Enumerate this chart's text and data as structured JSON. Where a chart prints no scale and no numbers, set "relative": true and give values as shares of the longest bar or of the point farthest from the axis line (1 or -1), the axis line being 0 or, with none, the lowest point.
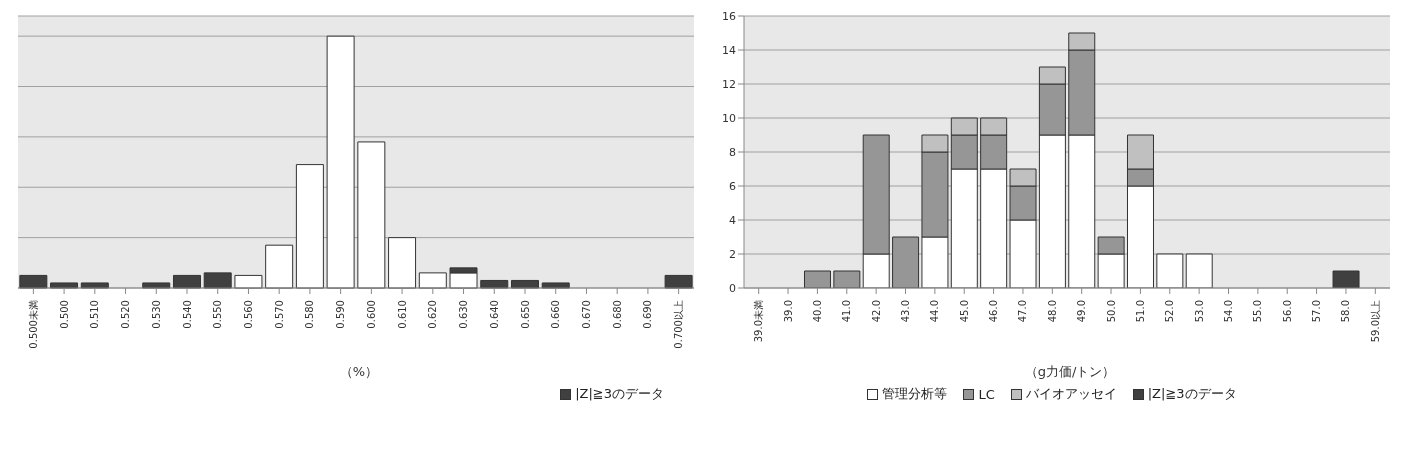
{
  "chart_data": [
    {
      "type": "bar",
      "stacked": true,
      "relative": true,
      "xlabel": "（%）",
      "grid": true,
      "legend": "bottom right",
      "categories": [
        "0.500未満",
        "0.500",
        "0.510",
        "0.520",
        "0.530",
        "0.540",
        "0.550",
        "0.560",
        "0.570",
        "0.580",
        "0.590",
        "0.600",
        "0.610",
        "0.620",
        "0.630",
        "0.640",
        "0.650",
        "0.660",
        "0.670",
        "0.680",
        "0.690",
        "0.700以上"
      ],
      "series": [
        {
          "color": "#ffffff",
          "values": [
            0,
            0,
            0,
            0,
            0,
            0,
            0,
            0.05,
            0.17,
            0.49,
            1,
            0.58,
            0.2,
            0.06,
            0.06,
            0,
            0,
            0,
            0,
            0,
            0,
            0
          ]
        },
        {
          "name": "|Z|≧3のデータ",
          "color": "#404040",
          "values": [
            0.05,
            0.02,
            0.02,
            0,
            0.02,
            0.05,
            0.06,
            0,
            0,
            0,
            0,
            0,
            0,
            0,
            0.02,
            0.03,
            0.03,
            0.02,
            0,
            0,
            0,
            0.05
          ]
        }
      ]
    },
    {
      "type": "bar",
      "stacked": true,
      "xlabel": "（g力価/トン）",
      "grid": "y",
      "legend": "bottom",
      "ylim": [
        0,
        16
      ],
      "yticks": [
        0,
        2,
        4,
        6,
        8,
        10,
        12,
        14,
        16
      ],
      "categories": [
        "39.0未満",
        "39.0",
        "40.0",
        "41.0",
        "42.0",
        "43.0",
        "44.0",
        "45.0",
        "46.0",
        "47.0",
        "48.0",
        "49.0",
        "50.0",
        "51.0",
        "52.0",
        "53.0",
        "54.0",
        "55.0",
        "56.0",
        "57.0",
        "58.0",
        "59.0以上"
      ],
      "series": [
        {
          "name": "管理分析等",
          "color": "#ffffff",
          "values": [
            0,
            0,
            0,
            0,
            2,
            0,
            3,
            7,
            7,
            4,
            9,
            9,
            2,
            6,
            2,
            2,
            0,
            0,
            0,
            0,
            0,
            0
          ]
        },
        {
          "name": "LC",
          "color": "#969696",
          "values": [
            0,
            0,
            1,
            1,
            7,
            3,
            5,
            2,
            2,
            2,
            3,
            5,
            1,
            1,
            0,
            0,
            0,
            0,
            0,
            0,
            0,
            0
          ]
        },
        {
          "name": "バイオアッセイ",
          "color": "#c0c0c0",
          "values": [
            0,
            0,
            0,
            0,
            0,
            0,
            1,
            1,
            1,
            1,
            1,
            1,
            0,
            2,
            0,
            0,
            0,
            0,
            0,
            0,
            0,
            0
          ]
        },
        {
          "name": "|Z|≧3のデータ",
          "color": "#404040",
          "values": [
            0,
            0,
            0,
            0,
            0,
            0,
            0,
            0,
            0,
            0,
            0,
            0,
            0,
            0,
            0,
            0,
            0,
            0,
            0,
            0,
            1,
            0
          ]
        }
      ]
    }
  ]
}
